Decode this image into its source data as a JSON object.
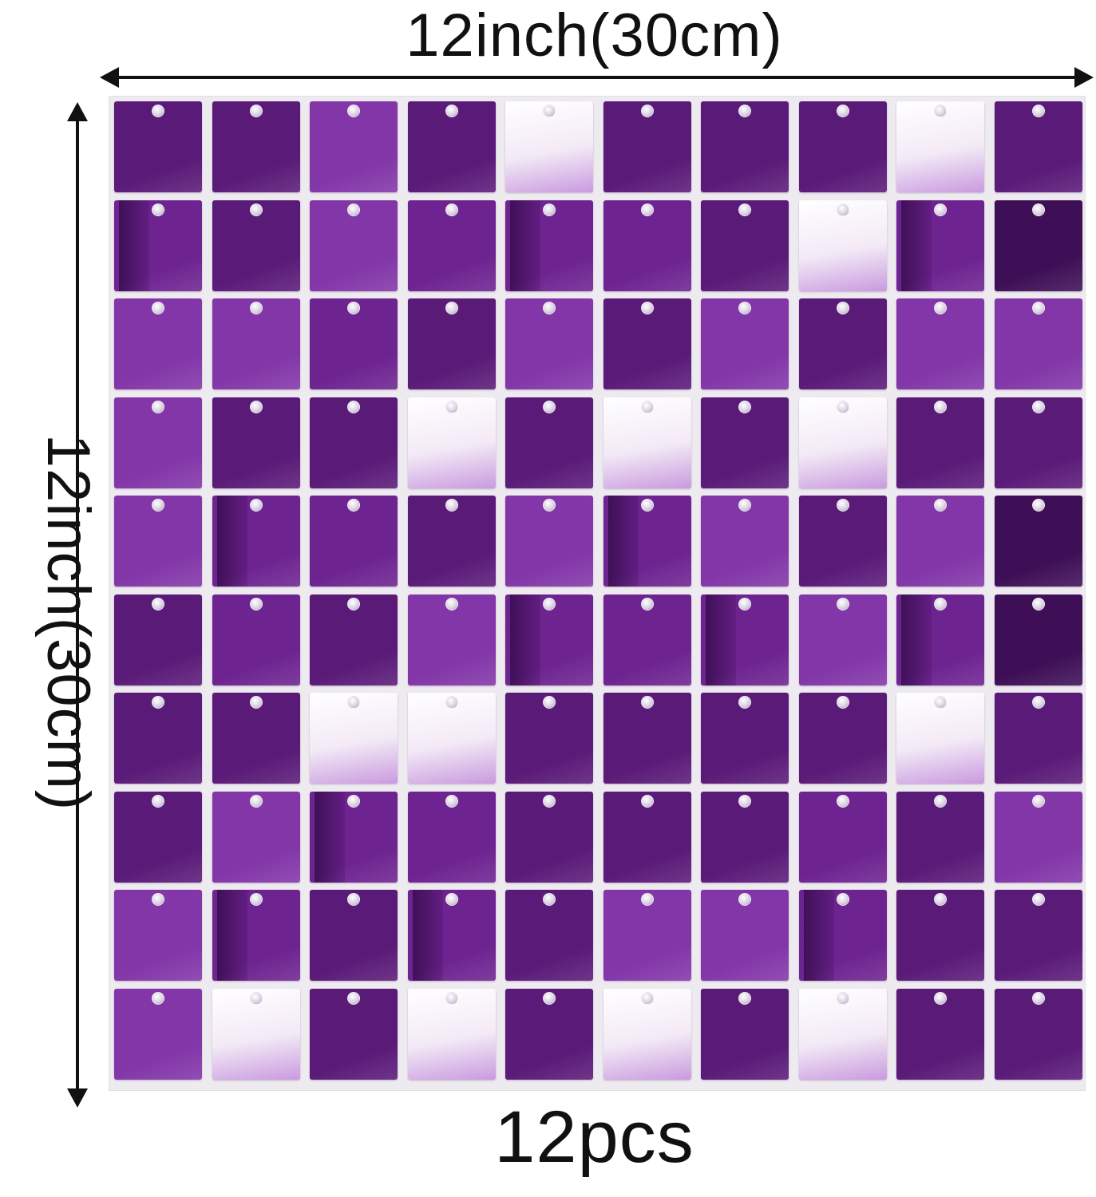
{
  "labels": {
    "width": "12inch(30cm)",
    "height": "12inch(30cm)",
    "quantity": "12pcs"
  },
  "colors": {
    "dark": "#5a1a78",
    "mid": "#6d2390",
    "light": "#8236a8",
    "deep": "#3e0f56",
    "silver": "#f3eaf6",
    "arrow": "#111111"
  },
  "grid": {
    "rows": 10,
    "cols": 10,
    "pattern": [
      [
        "dark",
        "dark",
        "light",
        "dark",
        "silver",
        "dark",
        "dark",
        "dark",
        "silver",
        "dark"
      ],
      [
        "mid",
        "dark",
        "light",
        "mid",
        "mid",
        "mid",
        "dark",
        "silver",
        "mid",
        "deep"
      ],
      [
        "light",
        "light",
        "mid",
        "dark",
        "light",
        "dark",
        "light",
        "dark",
        "light",
        "light"
      ],
      [
        "light",
        "dark",
        "dark",
        "silver",
        "dark",
        "silver",
        "dark",
        "silver",
        "dark",
        "dark"
      ],
      [
        "light",
        "mid",
        "mid",
        "dark",
        "light",
        "mid",
        "light",
        "dark",
        "light",
        "deep"
      ],
      [
        "dark",
        "mid",
        "dark",
        "light",
        "mid",
        "mid",
        "mid",
        "light",
        "mid",
        "deep"
      ],
      [
        "dark",
        "dark",
        "silver",
        "silver",
        "dark",
        "dark",
        "dark",
        "dark",
        "silver",
        "dark"
      ],
      [
        "dark",
        "light",
        "mid",
        "mid",
        "dark",
        "dark",
        "dark",
        "mid",
        "dark",
        "light"
      ],
      [
        "light",
        "mid",
        "dark",
        "mid",
        "dark",
        "light",
        "light",
        "mid",
        "dark",
        "dark"
      ],
      [
        "light",
        "silver",
        "dark",
        "silver",
        "dark",
        "silver",
        "dark",
        "silver",
        "dark",
        "dark"
      ]
    ]
  }
}
